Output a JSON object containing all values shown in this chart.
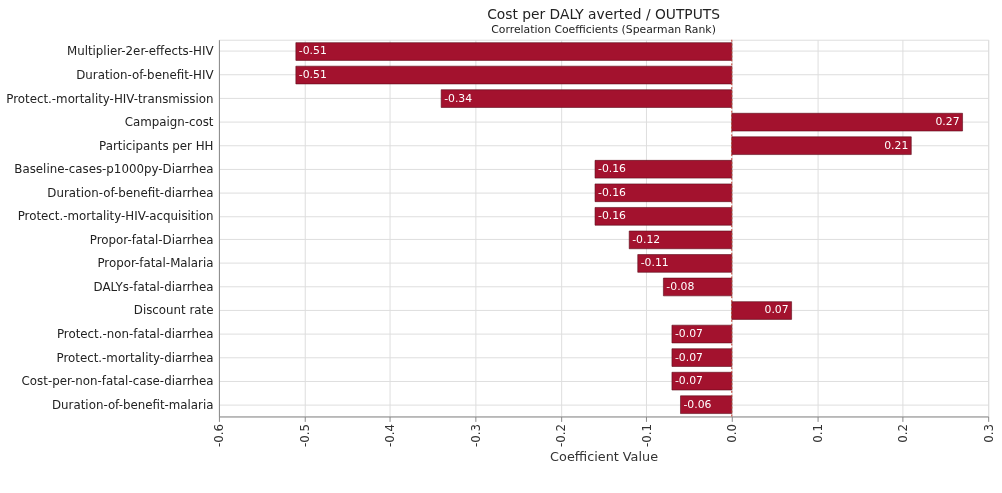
{
  "chart_data": {
    "type": "bar",
    "orientation": "horizontal",
    "title": "Cost per DALY averted / OUTPUTS",
    "subtitle": "Correlation Coefficients (Spearman Rank)",
    "xlabel": "Coefficient  Value",
    "categories": [
      "Multiplier-2er-effects-HIV",
      "Duration-of-benefit-HIV",
      "Protect.-mortality-HIV-transmission",
      "Campaign-cost",
      "Participants per HH",
      "Baseline-cases-p1000py-Diarrhea",
      "Duration-of-benefit-diarrhea",
      "Protect.-mortality-HIV-acquisition",
      "Propor-fatal-Diarrhea",
      "Propor-fatal-Malaria",
      "DALYs-fatal-diarrhea",
      "Discount rate",
      "Protect.-non-fatal-diarrhea",
      "Protect.-mortality-diarrhea",
      "Cost-per-non-fatal-case-diarrhea",
      "Duration-of-benefit-malaria"
    ],
    "values": [
      -0.51,
      -0.51,
      -0.34,
      0.27,
      0.21,
      -0.16,
      -0.16,
      -0.16,
      -0.12,
      -0.11,
      -0.08,
      0.07,
      -0.07,
      -0.07,
      -0.07,
      -0.06
    ],
    "color": "#a3122e",
    "data_labels": true,
    "xlim": [
      -0.6,
      0.3
    ],
    "xticks": [
      -0.6,
      -0.5,
      -0.4,
      -0.3,
      -0.2,
      -0.1,
      {
        "value": 0,
        "label": "0.0"
      },
      0.1,
      0.2,
      0.3
    ],
    "ref_lines": [
      {
        "axis": "x",
        "value": 0,
        "color": "#c0392b",
        "line_style": "dotted"
      }
    ],
    "grid": true
  }
}
